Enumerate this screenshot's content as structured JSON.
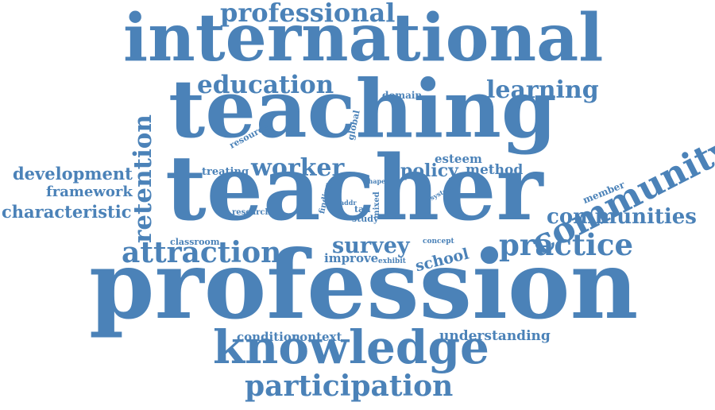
{
  "color": "#4b82b8",
  "words": [
    {
      "id": "profession",
      "text": "profession"
    },
    {
      "id": "teacher",
      "text": "teacher"
    },
    {
      "id": "teaching",
      "text": "teaching"
    },
    {
      "id": "international",
      "text": "international"
    },
    {
      "id": "knowledge",
      "text": "knowledge"
    },
    {
      "id": "community",
      "text": "community"
    },
    {
      "id": "participation",
      "text": "participation"
    },
    {
      "id": "attraction",
      "text": "attraction"
    },
    {
      "id": "practice",
      "text": "practice"
    },
    {
      "id": "professional",
      "text": "professional"
    },
    {
      "id": "education",
      "text": "education"
    },
    {
      "id": "learning",
      "text": "learning"
    },
    {
      "id": "retention",
      "text": "retention"
    },
    {
      "id": "worker",
      "text": "worker"
    },
    {
      "id": "communities",
      "text": "communities"
    },
    {
      "id": "survey",
      "text": "survey"
    },
    {
      "id": "development",
      "text": "development"
    },
    {
      "id": "characteristic",
      "text": "characteristic"
    },
    {
      "id": "framework",
      "text": "framework"
    },
    {
      "id": "policy",
      "text": "policy"
    },
    {
      "id": "school",
      "text": "school"
    },
    {
      "id": "method",
      "text": "method"
    },
    {
      "id": "esteem",
      "text": "esteem"
    },
    {
      "id": "understanding",
      "text": "understanding"
    },
    {
      "id": "condition",
      "text": "condition"
    },
    {
      "id": "context",
      "text": "context"
    },
    {
      "id": "improve",
      "text": "improve"
    },
    {
      "id": "treating",
      "text": "treating"
    },
    {
      "id": "domain",
      "text": "domain"
    },
    {
      "id": "member",
      "text": "member"
    },
    {
      "id": "resource",
      "text": "resource"
    },
    {
      "id": "global",
      "text": "global"
    },
    {
      "id": "research",
      "text": "research"
    },
    {
      "id": "classroom",
      "text": "classroom"
    },
    {
      "id": "tali",
      "text": "tali"
    },
    {
      "id": "study",
      "text": "study"
    },
    {
      "id": "mixed",
      "text": "mixed"
    },
    {
      "id": "finding",
      "text": "finding"
    },
    {
      "id": "addr",
      "text": "addr"
    },
    {
      "id": "shape",
      "text": "shape"
    },
    {
      "id": "system",
      "text": "system"
    },
    {
      "id": "concept",
      "text": "concept"
    },
    {
      "id": "exhibit",
      "text": "exhibit"
    }
  ]
}
